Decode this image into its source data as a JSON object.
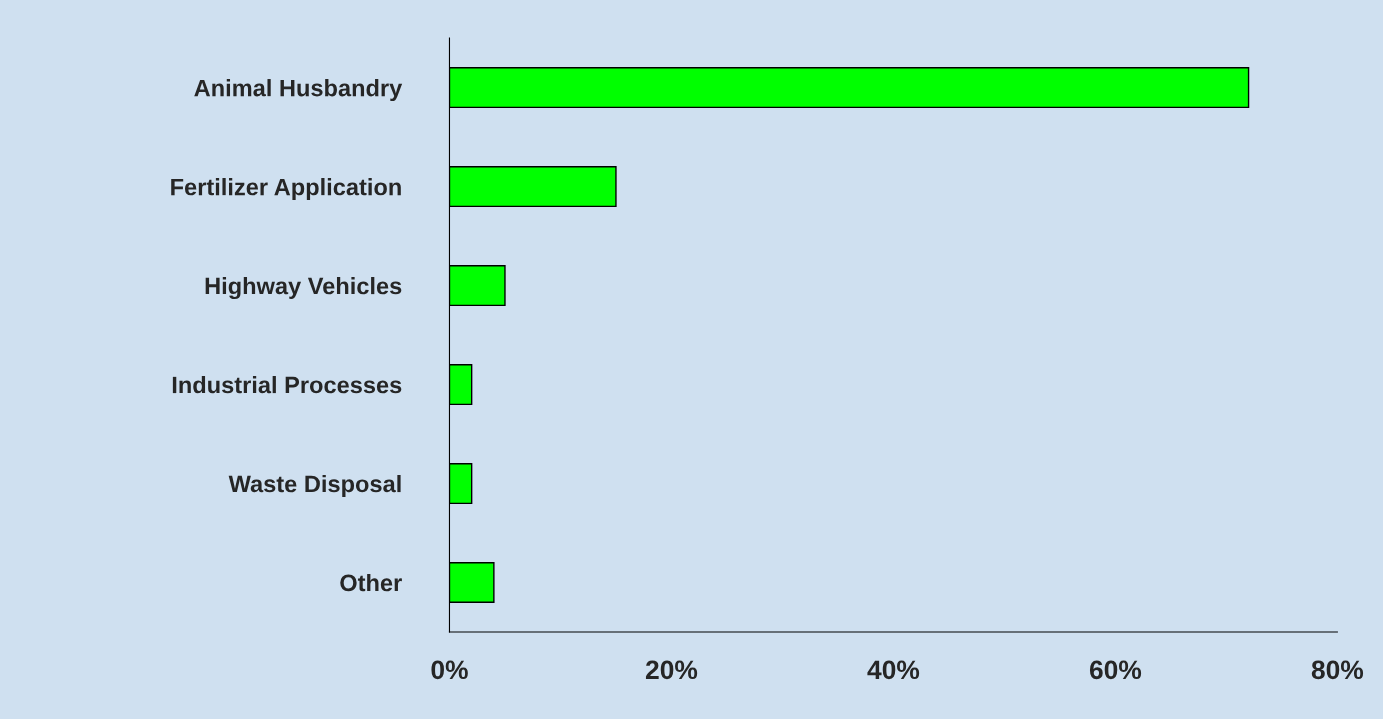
{
  "chart_data": {
    "type": "bar",
    "orientation": "horizontal",
    "categories": [
      "Animal Husbandry",
      "Fertilizer Application",
      "Highway Vehicles",
      "Industrial Processes",
      "Waste Disposal",
      "Other"
    ],
    "values": [
      72,
      15,
      5,
      2,
      2,
      4
    ],
    "color": "#00ff00",
    "xlim": [
      0,
      80
    ],
    "xticks": [
      {
        "value": 0,
        "label": "0%"
      },
      {
        "value": 20,
        "label": "20%"
      },
      {
        "value": 40,
        "label": "40%"
      },
      {
        "value": 60,
        "label": "60%"
      },
      {
        "value": 80,
        "label": "80%"
      }
    ],
    "grid": false,
    "legend": false
  }
}
